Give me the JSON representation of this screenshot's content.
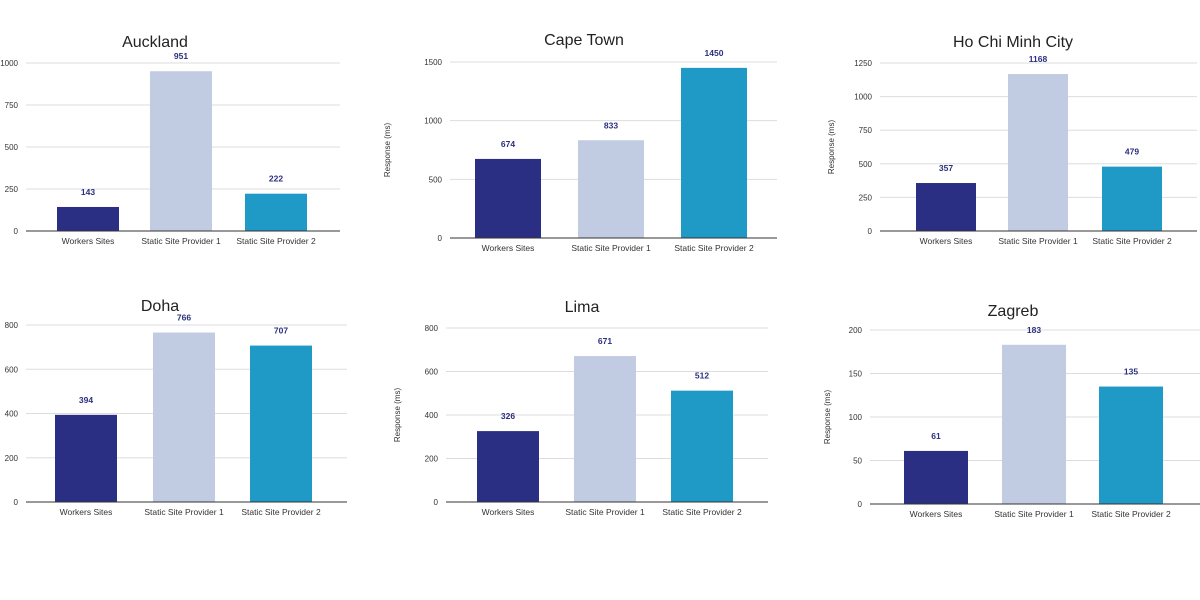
{
  "chart_data": [
    {
      "type": "bar",
      "title": "Auckland",
      "categories": [
        "Workers Sites",
        "Static Site Provider 1",
        "Static Site Provider 2"
      ],
      "values": [
        143,
        951,
        222
      ],
      "ylabel": "",
      "ylim": [
        0,
        1000
      ],
      "yticks": [
        0,
        250,
        500,
        750,
        1000
      ],
      "ytick_labels": [
        "0",
        "250",
        "500",
        "750",
        "1000"
      ],
      "colors": [
        "#2b2f83",
        "#c1cbe2",
        "#1f9ac7"
      ],
      "grid": true
    },
    {
      "type": "bar",
      "title": "Cape Town",
      "categories": [
        "Workers Sites",
        "Static Site Provider 1",
        "Static Site Provider 2"
      ],
      "values": [
        674,
        833,
        1450
      ],
      "ylabel": "Response (ms)",
      "ylim": [
        0,
        1500
      ],
      "yticks": [
        0,
        500,
        1000,
        1500
      ],
      "ytick_labels": [
        "0",
        "500",
        "1000",
        "1500"
      ],
      "colors": [
        "#2b2f83",
        "#c1cbe2",
        "#1f9ac7"
      ],
      "grid": true
    },
    {
      "type": "bar",
      "title": "Ho Chi Minh City",
      "categories": [
        "Workers Sites",
        "Static Site Provider 1",
        "Static Site Provider 2"
      ],
      "values": [
        357,
        1168,
        479
      ],
      "ylabel": "Response (ms)",
      "ylim": [
        0,
        1250
      ],
      "yticks": [
        0,
        250,
        500,
        750,
        1000,
        1250
      ],
      "ytick_labels": [
        "0",
        "250",
        "500",
        "750",
        "1000",
        "1250"
      ],
      "colors": [
        "#2b2f83",
        "#c1cbe2",
        "#1f9ac7"
      ],
      "grid": true
    },
    {
      "type": "bar",
      "title": "Doha",
      "categories": [
        "Workers Sites",
        "Static Site Provider 1",
        "Static Site Provider 2"
      ],
      "values": [
        394,
        766,
        707
      ],
      "ylabel": "",
      "ylim": [
        0,
        800
      ],
      "yticks": [
        0,
        200,
        400,
        600,
        800
      ],
      "ytick_labels": [
        "0",
        "200",
        "400",
        "600",
        "800"
      ],
      "colors": [
        "#2b2f83",
        "#c1cbe2",
        "#1f9ac7"
      ],
      "grid": true
    },
    {
      "type": "bar",
      "title": "Lima",
      "categories": [
        "Workers Sites",
        "Static Site Provider 1",
        "Static Site Provider 2"
      ],
      "values": [
        326,
        671,
        512
      ],
      "ylabel": "Response (ms)",
      "ylim": [
        0,
        800
      ],
      "yticks": [
        0,
        200,
        400,
        600,
        800
      ],
      "ytick_labels": [
        "0",
        "200",
        "400",
        "600",
        "800"
      ],
      "colors": [
        "#2b2f83",
        "#c1cbe2",
        "#1f9ac7"
      ],
      "grid": true
    },
    {
      "type": "bar",
      "title": "Zagreb",
      "categories": [
        "Workers Sites",
        "Static Site Provider 1",
        "Static Site Provider 2"
      ],
      "values": [
        61,
        183,
        135
      ],
      "ylabel": "Response (ms)",
      "ylim": [
        0,
        200
      ],
      "yticks": [
        0,
        50,
        100,
        150,
        200
      ],
      "ytick_labels": [
        "0",
        "50",
        "100",
        "150",
        "200"
      ],
      "colors": [
        "#2b2f83",
        "#c1cbe2",
        "#1f9ac7"
      ],
      "grid": true
    }
  ]
}
